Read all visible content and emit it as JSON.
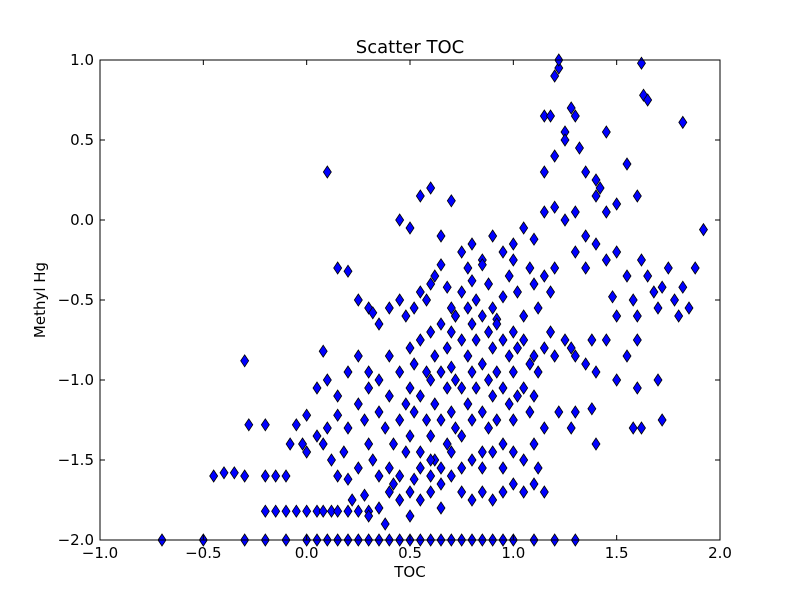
{
  "chart_data": {
    "type": "scatter",
    "title": "Scatter TOC",
    "xlabel": "TOC",
    "ylabel": "Methyl Hg",
    "xlim": [
      -1.0,
      2.0
    ],
    "ylim": [
      -2.0,
      1.0
    ],
    "x_ticks": [
      -1.0,
      -0.5,
      0.0,
      0.5,
      1.0,
      1.5,
      2.0
    ],
    "y_ticks": [
      -2.0,
      -1.5,
      -1.0,
      -0.5,
      0.0,
      0.5,
      1.0
    ],
    "x_tick_labels": [
      "−1.0",
      "−0.5",
      "0.0",
      "0.5",
      "1.0",
      "1.5",
      "2.0"
    ],
    "y_tick_labels": [
      "−2.0",
      "−1.5",
      "−1.0",
      "−0.5",
      "0.0",
      "0.5",
      "1.0"
    ],
    "grid": false,
    "legend": "none",
    "marker": "diamond",
    "marker_color": "#0000ff",
    "marker_edge_color": "#000000",
    "points": [
      [
        -0.7,
        -2.0
      ],
      [
        -0.5,
        -2.0
      ],
      [
        -0.3,
        -2.0
      ],
      [
        -0.2,
        -2.0
      ],
      [
        -0.1,
        -2.0
      ],
      [
        0.0,
        -2.0
      ],
      [
        0.05,
        -2.0
      ],
      [
        0.1,
        -2.0
      ],
      [
        0.15,
        -2.0
      ],
      [
        0.2,
        -2.0
      ],
      [
        0.25,
        -2.0
      ],
      [
        0.3,
        -2.0
      ],
      [
        0.35,
        -2.0
      ],
      [
        0.4,
        -2.0
      ],
      [
        0.45,
        -2.0
      ],
      [
        0.5,
        -2.0
      ],
      [
        0.55,
        -2.0
      ],
      [
        0.6,
        -2.0
      ],
      [
        0.65,
        -2.0
      ],
      [
        0.7,
        -2.0
      ],
      [
        0.75,
        -2.0
      ],
      [
        0.8,
        -2.0
      ],
      [
        0.85,
        -2.0
      ],
      [
        0.9,
        -2.0
      ],
      [
        0.95,
        -2.0
      ],
      [
        1.0,
        -2.0
      ],
      [
        1.1,
        -2.0
      ],
      [
        1.2,
        -2.0
      ],
      [
        1.3,
        -2.0
      ],
      [
        -0.2,
        -1.82
      ],
      [
        -0.15,
        -1.82
      ],
      [
        -0.1,
        -1.82
      ],
      [
        -0.05,
        -1.82
      ],
      [
        0.0,
        -1.82
      ],
      [
        0.05,
        -1.82
      ],
      [
        0.08,
        -1.82
      ],
      [
        0.12,
        -1.82
      ],
      [
        0.15,
        -1.82
      ],
      [
        0.2,
        -1.82
      ],
      [
        0.25,
        -1.82
      ],
      [
        0.3,
        -1.82
      ],
      [
        -0.45,
        -1.6
      ],
      [
        -0.4,
        -1.58
      ],
      [
        -0.35,
        -1.58
      ],
      [
        -0.3,
        -1.6
      ],
      [
        -0.2,
        -1.6
      ],
      [
        -0.15,
        -1.6
      ],
      [
        -0.1,
        -1.6
      ],
      [
        -0.28,
        -1.28
      ],
      [
        -0.2,
        -1.28
      ],
      [
        -0.3,
        -0.88
      ],
      [
        0.1,
        0.3
      ],
      [
        -0.05,
        -1.28
      ],
      [
        0.0,
        -1.22
      ],
      [
        0.0,
        -1.45
      ],
      [
        -0.08,
        -1.4
      ],
      [
        -0.02,
        -1.4
      ],
      [
        0.05,
        -1.35
      ],
      [
        0.1,
        -1.3
      ],
      [
        0.08,
        -1.4
      ],
      [
        0.12,
        -1.5
      ],
      [
        0.15,
        -1.6
      ],
      [
        0.18,
        -1.45
      ],
      [
        0.2,
        -1.3
      ],
      [
        0.15,
        -1.22
      ],
      [
        0.1,
        -1.0
      ],
      [
        0.05,
        -1.05
      ],
      [
        0.08,
        -0.82
      ],
      [
        0.25,
        -0.85
      ],
      [
        0.2,
        -0.95
      ],
      [
        0.15,
        -1.1
      ],
      [
        0.3,
        -1.05
      ],
      [
        0.15,
        -0.3
      ],
      [
        0.2,
        -0.32
      ],
      [
        0.25,
        -0.5
      ],
      [
        0.3,
        -0.55
      ],
      [
        0.32,
        -0.58
      ],
      [
        0.35,
        -0.65
      ],
      [
        0.4,
        -0.55
      ],
      [
        0.45,
        -0.5
      ],
      [
        0.48,
        -0.6
      ],
      [
        0.52,
        -0.55
      ],
      [
        0.55,
        -0.45
      ],
      [
        0.58,
        -0.5
      ],
      [
        0.6,
        -0.4
      ],
      [
        0.62,
        -0.35
      ],
      [
        0.65,
        -0.28
      ],
      [
        0.68,
        -0.42
      ],
      [
        0.7,
        -0.55
      ],
      [
        0.72,
        -0.6
      ],
      [
        0.75,
        -0.45
      ],
      [
        0.78,
        -0.3
      ],
      [
        0.8,
        -0.38
      ],
      [
        0.82,
        -0.5
      ],
      [
        0.85,
        -0.25
      ],
      [
        0.88,
        -0.4
      ],
      [
        0.9,
        -0.55
      ],
      [
        0.92,
        -0.62
      ],
      [
        0.95,
        -0.48
      ],
      [
        0.98,
        -0.35
      ],
      [
        1.0,
        -0.25
      ],
      [
        1.02,
        -0.45
      ],
      [
        1.05,
        -0.6
      ],
      [
        1.08,
        -0.3
      ],
      [
        1.1,
        -0.4
      ],
      [
        1.12,
        -0.55
      ],
      [
        1.15,
        -0.35
      ],
      [
        1.18,
        -0.45
      ],
      [
        1.2,
        -0.3
      ],
      [
        0.45,
        0.0
      ],
      [
        0.5,
        -0.05
      ],
      [
        0.55,
        0.15
      ],
      [
        0.6,
        0.2
      ],
      [
        0.65,
        -0.1
      ],
      [
        0.7,
        0.12
      ],
      [
        0.75,
        -0.2
      ],
      [
        0.8,
        -0.15
      ],
      [
        0.85,
        -0.28
      ],
      [
        0.9,
        -0.1
      ],
      [
        0.95,
        -0.2
      ],
      [
        1.0,
        -0.15
      ],
      [
        1.05,
        -0.05
      ],
      [
        1.1,
        -0.12
      ],
      [
        1.15,
        0.05
      ],
      [
        1.2,
        0.08
      ],
      [
        1.25,
        0.0
      ],
      [
        1.3,
        0.05
      ],
      [
        1.35,
        -0.1
      ],
      [
        1.4,
        0.15
      ],
      [
        1.42,
        0.2
      ],
      [
        1.45,
        0.05
      ],
      [
        1.5,
        0.1
      ],
      [
        1.55,
        0.35
      ],
      [
        1.6,
        0.15
      ],
      [
        1.3,
        -0.2
      ],
      [
        1.35,
        -0.3
      ],
      [
        1.4,
        -0.15
      ],
      [
        1.45,
        -0.25
      ],
      [
        1.15,
        0.65
      ],
      [
        1.18,
        0.65
      ],
      [
        1.2,
        0.9
      ],
      [
        1.22,
        0.95
      ],
      [
        1.25,
        0.55
      ],
      [
        1.28,
        0.7
      ],
      [
        1.3,
        0.65
      ],
      [
        1.32,
        0.45
      ],
      [
        1.35,
        0.3
      ],
      [
        1.4,
        0.25
      ],
      [
        1.45,
        0.55
      ],
      [
        1.25,
        0.5
      ],
      [
        1.2,
        0.4
      ],
      [
        1.15,
        0.3
      ],
      [
        1.22,
        1.0
      ],
      [
        1.62,
        0.98
      ],
      [
        1.63,
        0.78
      ],
      [
        1.65,
        0.75
      ],
      [
        1.82,
        0.61
      ],
      [
        1.5,
        -0.2
      ],
      [
        1.55,
        -0.35
      ],
      [
        1.58,
        -0.5
      ],
      [
        1.6,
        -0.6
      ],
      [
        1.62,
        -0.25
      ],
      [
        1.65,
        -0.35
      ],
      [
        1.68,
        -0.45
      ],
      [
        1.7,
        -0.55
      ],
      [
        1.72,
        -0.42
      ],
      [
        1.75,
        -0.3
      ],
      [
        1.78,
        -0.5
      ],
      [
        1.8,
        -0.6
      ],
      [
        1.82,
        -0.42
      ],
      [
        1.85,
        -0.55
      ],
      [
        1.88,
        -0.3
      ],
      [
        1.92,
        -0.06
      ],
      [
        1.6,
        -0.75
      ],
      [
        1.55,
        -0.85
      ],
      [
        1.45,
        -0.75
      ],
      [
        1.4,
        -0.95
      ],
      [
        1.5,
        -1.0
      ],
      [
        1.6,
        -1.05
      ],
      [
        1.7,
        -1.0
      ],
      [
        1.62,
        -1.3
      ],
      [
        1.58,
        -1.3
      ],
      [
        1.72,
        -1.25
      ],
      [
        1.4,
        -1.4
      ],
      [
        1.38,
        -1.18
      ],
      [
        1.3,
        -1.2
      ],
      [
        1.28,
        -1.3
      ],
      [
        1.22,
        -1.2
      ],
      [
        1.5,
        -0.6
      ],
      [
        1.48,
        -0.48
      ],
      [
        0.55,
        -1.55
      ],
      [
        0.6,
        -1.6
      ],
      [
        0.65,
        -1.65
      ],
      [
        0.7,
        -1.6
      ],
      [
        0.75,
        -1.7
      ],
      [
        0.8,
        -1.75
      ],
      [
        0.85,
        -1.7
      ],
      [
        0.9,
        -1.75
      ],
      [
        0.95,
        -1.7
      ],
      [
        1.0,
        -1.65
      ],
      [
        1.05,
        -1.7
      ],
      [
        1.1,
        -1.65
      ],
      [
        1.15,
        -1.7
      ],
      [
        0.45,
        -1.75
      ],
      [
        0.4,
        -1.7
      ],
      [
        0.35,
        -1.8
      ],
      [
        0.3,
        -1.85
      ],
      [
        0.38,
        -1.9
      ],
      [
        0.5,
        -1.85
      ],
      [
        0.55,
        -1.75
      ],
      [
        0.65,
        -1.8
      ],
      [
        0.6,
        -1.7
      ],
      [
        0.3,
        -0.95
      ],
      [
        0.35,
        -1.0
      ],
      [
        0.35,
        -1.2
      ],
      [
        0.38,
        -1.3
      ],
      [
        0.4,
        -1.1
      ],
      [
        0.4,
        -0.85
      ],
      [
        0.42,
        -1.4
      ],
      [
        0.45,
        -1.25
      ],
      [
        0.45,
        -0.95
      ],
      [
        0.48,
        -1.15
      ],
      [
        0.5,
        -0.8
      ],
      [
        0.5,
        -1.05
      ],
      [
        0.5,
        -1.35
      ],
      [
        0.52,
        -0.9
      ],
      [
        0.52,
        -1.2
      ],
      [
        0.55,
        -0.75
      ],
      [
        0.55,
        -1.1
      ],
      [
        0.55,
        -1.45
      ],
      [
        0.58,
        -0.95
      ],
      [
        0.58,
        -1.25
      ],
      [
        0.6,
        -0.7
      ],
      [
        0.6,
        -1.0
      ],
      [
        0.6,
        -1.35
      ],
      [
        0.62,
        -0.85
      ],
      [
        0.62,
        -1.15
      ],
      [
        0.62,
        -1.5
      ],
      [
        0.65,
        -0.65
      ],
      [
        0.65,
        -0.95
      ],
      [
        0.65,
        -1.25
      ],
      [
        0.68,
        -0.8
      ],
      [
        0.68,
        -1.05
      ],
      [
        0.68,
        -1.4
      ],
      [
        0.7,
        -0.7
      ],
      [
        0.7,
        -0.92
      ],
      [
        0.7,
        -1.2
      ],
      [
        0.72,
        -1.0
      ],
      [
        0.72,
        -1.3
      ],
      [
        0.72,
        -0.6
      ],
      [
        0.75,
        -0.75
      ],
      [
        0.75,
        -1.05
      ],
      [
        0.75,
        -1.35
      ],
      [
        0.78,
        -0.85
      ],
      [
        0.78,
        -1.15
      ],
      [
        0.78,
        -0.55
      ],
      [
        0.8,
        -0.65
      ],
      [
        0.8,
        -0.95
      ],
      [
        0.8,
        -1.25
      ],
      [
        0.8,
        -1.5
      ],
      [
        0.82,
        -0.75
      ],
      [
        0.82,
        -1.05
      ],
      [
        0.85,
        -0.6
      ],
      [
        0.85,
        -0.9
      ],
      [
        0.85,
        -1.2
      ],
      [
        0.85,
        -1.45
      ],
      [
        0.88,
        -0.7
      ],
      [
        0.88,
        -1.0
      ],
      [
        0.88,
        -1.3
      ],
      [
        0.9,
        -0.8
      ],
      [
        0.9,
        -1.1
      ],
      [
        0.92,
        -0.65
      ],
      [
        0.92,
        -0.95
      ],
      [
        0.92,
        -1.25
      ],
      [
        0.95,
        -0.75
      ],
      [
        0.95,
        -1.05
      ],
      [
        0.95,
        -1.4
      ],
      [
        0.98,
        -0.85
      ],
      [
        0.98,
        -1.15
      ],
      [
        1.0,
        -0.7
      ],
      [
        1.0,
        -0.95
      ],
      [
        1.0,
        -1.25
      ],
      [
        1.02,
        -0.8
      ],
      [
        1.02,
        -1.1
      ],
      [
        1.05,
        -0.75
      ],
      [
        1.05,
        -1.05
      ],
      [
        1.08,
        -0.9
      ],
      [
        1.08,
        -1.2
      ],
      [
        1.1,
        -0.85
      ],
      [
        1.1,
        -1.1
      ],
      [
        1.12,
        -0.95
      ],
      [
        1.15,
        -0.8
      ],
      [
        1.15,
        -1.3
      ],
      [
        1.18,
        -0.7
      ],
      [
        1.2,
        -0.85
      ],
      [
        1.25,
        -0.75
      ],
      [
        1.28,
        -0.8
      ],
      [
        1.3,
        -0.85
      ],
      [
        1.35,
        -0.9
      ],
      [
        1.38,
        -0.75
      ],
      [
        1.1,
        -1.4
      ],
      [
        1.05,
        -1.5
      ],
      [
        1.0,
        -1.45
      ],
      [
        1.12,
        -1.55
      ],
      [
        0.95,
        -1.55
      ],
      [
        0.9,
        -1.45
      ],
      [
        0.85,
        -1.55
      ],
      [
        0.75,
        -1.55
      ],
      [
        0.7,
        -1.45
      ],
      [
        0.65,
        -1.55
      ],
      [
        0.6,
        -1.5
      ],
      [
        0.25,
        -1.15
      ],
      [
        0.28,
        -1.25
      ],
      [
        0.3,
        -1.4
      ],
      [
        0.25,
        -1.55
      ],
      [
        0.32,
        -1.5
      ],
      [
        0.35,
        -1.6
      ],
      [
        0.4,
        -1.55
      ],
      [
        0.45,
        -1.6
      ],
      [
        0.48,
        -1.45
      ],
      [
        0.42,
        -1.65
      ],
      [
        0.5,
        -1.7
      ],
      [
        0.52,
        -1.62
      ],
      [
        0.2,
        -1.62
      ],
      [
        0.22,
        -1.75
      ],
      [
        0.28,
        -1.72
      ]
    ]
  }
}
